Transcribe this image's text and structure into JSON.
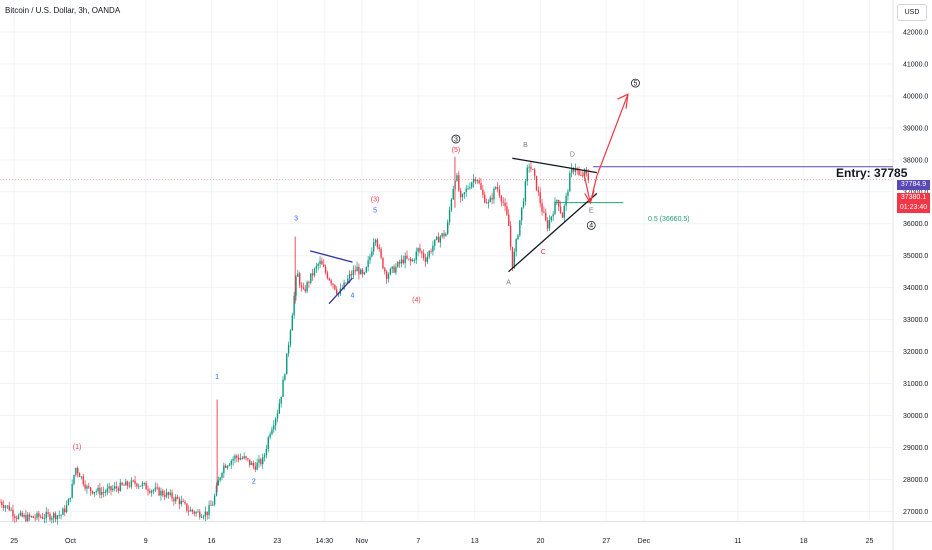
{
  "header": {
    "title": "Bitcoin / U.S. Dollar, 3h, OANDA",
    "currency_button": "USD"
  },
  "annotations": {
    "entry": "Entry: 37785",
    "fib": "0.5 (36660.5)"
  },
  "price_tags": {
    "entry": "37784.9",
    "last_price": "37380.1",
    "countdown": "01:23:40"
  },
  "colors": {
    "up": "#089981",
    "down": "#f23645",
    "entry_line": "#5a48b5",
    "fib_line": "#22a06b",
    "projection": "#f23645"
  },
  "chart_data": {
    "type": "candlestick",
    "title": "Bitcoin / U.S. Dollar, 3h, OANDA",
    "y_ticks": [
      27000,
      28000,
      29000,
      30000,
      31000,
      32000,
      33000,
      34000,
      35000,
      36000,
      37000,
      38000,
      39000,
      40000,
      41000,
      42000
    ],
    "y_tick_labels": [
      "27000.0",
      "28000.0",
      "29000.0",
      "30000.0",
      "31000.0",
      "32000.0",
      "33000.0",
      "34000.0",
      "35000.0",
      "36000.0",
      "37000.0",
      "38000.0",
      "39000.0",
      "40000.0",
      "41000.0",
      "42000.0"
    ],
    "ylim": [
      26700,
      43000
    ],
    "x_ticks": [
      {
        "label": "25",
        "day": -5
      },
      {
        "label": "Oct",
        "day": 1
      },
      {
        "label": "9",
        "day": 9
      },
      {
        "label": "16",
        "day": 16
      },
      {
        "label": "23",
        "day": 23
      },
      {
        "label": "14:30",
        "day": 28
      },
      {
        "label": "Nov",
        "day": 32
      },
      {
        "label": "7",
        "day": 38
      },
      {
        "label": "13",
        "day": 44
      },
      {
        "label": "20",
        "day": 51
      },
      {
        "label": "27",
        "day": 58
      },
      {
        "label": "Dec",
        "day": 62
      },
      {
        "label": "11",
        "day": 72
      },
      {
        "label": "18",
        "day": 79
      },
      {
        "label": "25",
        "day": 86
      }
    ],
    "xlim": [
      -6.5,
      88.5
    ],
    "price_path": [
      [
        -6.5,
        27300
      ],
      [
        -5.5,
        27100
      ],
      [
        -4.8,
        26850
      ],
      [
        -3.5,
        26800
      ],
      [
        0,
        26900
      ],
      [
        0.7,
        27200
      ],
      [
        1.2,
        27800
      ],
      [
        1.5,
        28400
      ],
      [
        2.0,
        28150
      ],
      [
        2.8,
        27700
      ],
      [
        4.5,
        27600
      ],
      [
        6.0,
        27750
      ],
      [
        8.0,
        27900
      ],
      [
        9.5,
        27700
      ],
      [
        11.0,
        27550
      ],
      [
        12.5,
        27350
      ],
      [
        13.5,
        27050
      ],
      [
        14.5,
        26950
      ],
      [
        15.5,
        26950
      ],
      [
        16.2,
        27300
      ],
      [
        16.7,
        27900
      ],
      [
        17.2,
        28400
      ],
      [
        18.5,
        28700
      ],
      [
        19.5,
        28650
      ],
      [
        20.5,
        28400
      ],
      [
        21.5,
        28600
      ],
      [
        22.2,
        29500
      ],
      [
        23.0,
        30100
      ],
      [
        23.5,
        30800
      ],
      [
        24.0,
        31800
      ],
      [
        24.5,
        33000
      ],
      [
        25.1,
        34500
      ],
      [
        25.7,
        33800
      ],
      [
        26.5,
        34300
      ],
      [
        27.5,
        34800
      ],
      [
        28.3,
        34400
      ],
      [
        29.0,
        34100
      ],
      [
        29.5,
        33800
      ],
      [
        30.0,
        34000
      ],
      [
        30.8,
        34400
      ],
      [
        31.5,
        34600
      ],
      [
        32.2,
        34300
      ],
      [
        32.8,
        34900
      ],
      [
        33.4,
        35700
      ],
      [
        34.0,
        34900
      ],
      [
        34.6,
        34400
      ],
      [
        35.5,
        34600
      ],
      [
        36.5,
        34900
      ],
      [
        37.3,
        34800
      ],
      [
        38.0,
        35200
      ],
      [
        38.8,
        34900
      ],
      [
        39.5,
        35300
      ],
      [
        40.3,
        35600
      ],
      [
        41.0,
        35700
      ],
      [
        41.5,
        36800
      ],
      [
        42.0,
        37600
      ],
      [
        42.5,
        36700
      ],
      [
        43.0,
        37000
      ],
      [
        43.6,
        37300
      ],
      [
        44.2,
        37500
      ],
      [
        44.8,
        36900
      ],
      [
        45.5,
        36600
      ],
      [
        46.3,
        37200
      ],
      [
        47.0,
        36700
      ],
      [
        47.6,
        36000
      ],
      [
        48.0,
        34700
      ],
      [
        48.3,
        35200
      ],
      [
        48.8,
        36100
      ],
      [
        49.3,
        37000
      ],
      [
        49.7,
        37900
      ],
      [
        50.2,
        37600
      ],
      [
        50.7,
        37000
      ],
      [
        51.2,
        36400
      ],
      [
        51.7,
        35900
      ],
      [
        52.2,
        36300
      ],
      [
        52.8,
        36800
      ],
      [
        53.3,
        36200
      ],
      [
        53.8,
        36900
      ],
      [
        54.2,
        37600
      ],
      [
        54.7,
        37800
      ],
      [
        55.2,
        37400
      ],
      [
        55.7,
        37600
      ],
      [
        56.1,
        37380
      ]
    ],
    "spikes": [
      {
        "day": 16.6,
        "high": 30500,
        "low": 27600
      },
      {
        "day": 24.9,
        "high": 35600,
        "low": 33500
      },
      {
        "day": 41.9,
        "high": 38100,
        "low": 36500
      }
    ],
    "entry_price": 37785,
    "fib_level": 36660.5,
    "last_price": 37380.1
  },
  "waves": {
    "labels": [
      {
        "text": "(1)",
        "color": "#f23645"
      },
      {
        "text": "1",
        "color": "#2962ff"
      },
      {
        "text": "2",
        "color": "#2962ff"
      },
      {
        "text": "3",
        "color": "#2962ff"
      },
      {
        "text": "4",
        "color": "#2962ff"
      },
      {
        "text": "5",
        "color": "#2962ff"
      },
      {
        "text": "(3)",
        "color": "#f23645"
      },
      {
        "text": "(4)",
        "color": "#f23645"
      },
      {
        "text": "(5)",
        "color": "#f23645"
      },
      {
        "text": "A",
        "color": "#787b86"
      },
      {
        "text": "B",
        "color": "#787b86"
      },
      {
        "text": "C",
        "color": "#f23645"
      },
      {
        "text": "D",
        "color": "#787b86"
      },
      {
        "text": "E",
        "color": "#787b86"
      }
    ],
    "circled": [
      {
        "text": "3"
      },
      {
        "text": "4"
      },
      {
        "text": "5"
      }
    ]
  }
}
